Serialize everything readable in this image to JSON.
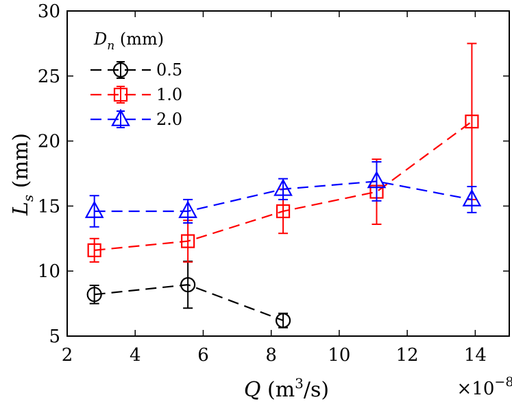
{
  "chart_data": {
    "type": "line",
    "title": "",
    "xlabel_var": "Q",
    "xlabel_unit": "(m",
    "xlabel_sup": "3",
    "xlabel_unit_end": "/s)",
    "ylabel_var": "L",
    "ylabel_sub": "s",
    "ylabel_unit": "(mm)",
    "x_scale_base": "×10",
    "x_scale_exp": "−8",
    "xlim": [
      2,
      15
    ],
    "ylim": [
      5,
      30
    ],
    "xticks": [
      2,
      4,
      6,
      8,
      10,
      12,
      14
    ],
    "yticks": [
      5,
      10,
      15,
      20,
      25,
      30
    ],
    "grid": false,
    "legend": {
      "title_var": "D",
      "title_sub": "n",
      "title_unit": "(mm)",
      "placement": "top-left"
    },
    "series": [
      {
        "name": "0.5",
        "color": "#000000",
        "marker": "circle",
        "x": [
          2.8,
          5.55,
          8.35
        ],
        "y": [
          8.2,
          8.95,
          6.2
        ],
        "yerr": [
          0.7,
          1.8,
          0.55
        ]
      },
      {
        "name": "1.0",
        "color": "#ff0000",
        "marker": "square",
        "x": [
          2.8,
          5.55,
          8.35,
          11.1,
          13.9
        ],
        "y": [
          11.6,
          12.3,
          14.6,
          16.1,
          21.5
        ],
        "yerr": [
          0.9,
          1.6,
          1.7,
          2.5,
          6.0
        ]
      },
      {
        "name": "2.0",
        "color": "#0000ff",
        "marker": "triangle",
        "x": [
          2.8,
          5.55,
          8.35,
          11.1,
          13.9
        ],
        "y": [
          14.6,
          14.6,
          16.3,
          16.9,
          15.5
        ],
        "yerr": [
          1.2,
          0.9,
          0.8,
          1.5,
          1.0
        ]
      }
    ]
  }
}
